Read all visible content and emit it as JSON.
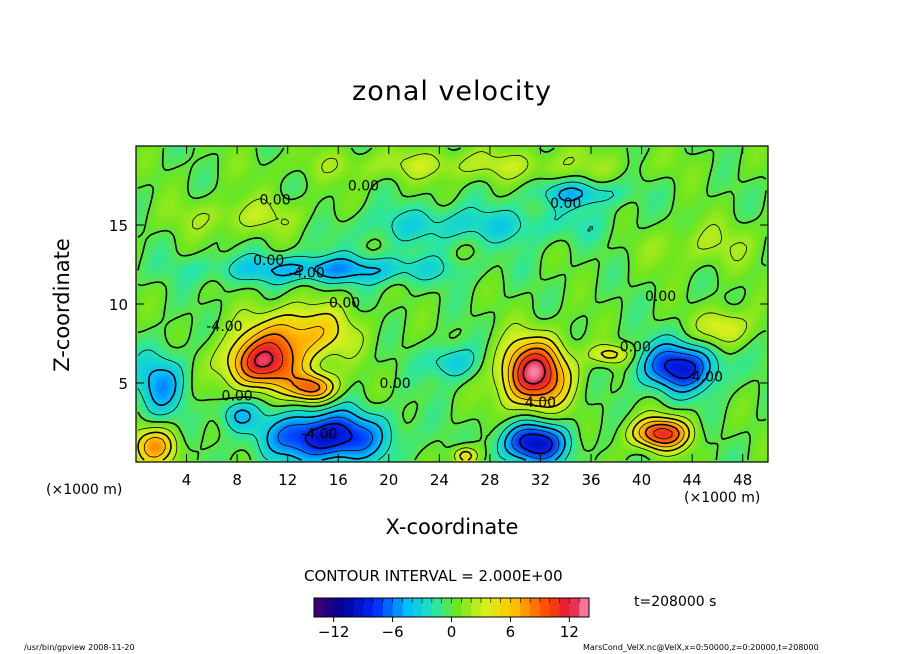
{
  "chart_data": {
    "type": "heatmap",
    "title": "zonal velocity",
    "xlabel": "X-coordinate",
    "ylabel": "Z-coordinate",
    "x_unit_left": "(×1000 m)",
    "x_unit_right": "(×1000 m)",
    "xlim": [
      0,
      50
    ],
    "ylim": [
      0,
      20
    ],
    "xticks": [
      4,
      8,
      12,
      16,
      20,
      24,
      28,
      32,
      36,
      40,
      44,
      48
    ],
    "yticks": [
      5,
      10,
      15
    ],
    "colorbar": {
      "min": -14,
      "max": 14,
      "ticks": [
        -12,
        -6,
        0,
        6,
        12
      ]
    },
    "contour_interval": "CONTOUR INTERVAL = 2.000E+00",
    "time": "t=208000 s",
    "contour_labels": [
      {
        "text": "0.00",
        "x": 18,
        "y": 17.5
      },
      {
        "text": "0.00",
        "x": 11,
        "y": 16.6
      },
      {
        "text": "0.00",
        "x": 34,
        "y": 16.4
      },
      {
        "text": "0.00",
        "x": 10.5,
        "y": 12.8
      },
      {
        "text": "-4.00",
        "x": 13.5,
        "y": 12.0
      },
      {
        "text": "0.00",
        "x": 16.5,
        "y": 10.1
      },
      {
        "text": "0.00",
        "x": 41.5,
        "y": 10.5
      },
      {
        "text": "-4.00",
        "x": 7,
        "y": 8.6
      },
      {
        "text": "0.00",
        "x": 39.5,
        "y": 7.3
      },
      {
        "text": "-4.00",
        "x": 45,
        "y": 5.4
      },
      {
        "text": "0.00",
        "x": 20.5,
        "y": 5.0
      },
      {
        "text": "0.00",
        "x": 8,
        "y": 4.2
      },
      {
        "text": "4.00",
        "x": 32,
        "y": 3.8
      },
      {
        "text": "-4.00",
        "x": 14.5,
        "y": 1.8
      }
    ],
    "features": [
      {
        "x": 10,
        "z": 6.2,
        "rx": 3.0,
        "rz": 1.6,
        "amp": 11
      },
      {
        "x": 14,
        "z": 4.7,
        "rx": 1.8,
        "rz": 0.9,
        "amp": 9
      },
      {
        "x": 13,
        "z": 8.2,
        "rx": 4.0,
        "rz": 1.7,
        "amp": 6.5
      },
      {
        "x": 31.5,
        "z": 5.6,
        "rx": 2.6,
        "rz": 2.1,
        "amp": 13
      },
      {
        "x": 41.5,
        "z": 1.8,
        "rx": 2.2,
        "rz": 1.0,
        "amp": 11
      },
      {
        "x": 37.5,
        "z": 6.8,
        "rx": 1.5,
        "rz": 0.6,
        "amp": 5
      },
      {
        "x": 46.5,
        "z": 8.5,
        "rx": 2.0,
        "rz": 1.2,
        "amp": 4.5
      },
      {
        "x": 1.5,
        "z": 1.0,
        "rx": 1.8,
        "rz": 1.2,
        "amp": 7
      },
      {
        "x": 26,
        "z": 0.4,
        "rx": 1.0,
        "rz": 0.6,
        "amp": 6
      },
      {
        "x": 15,
        "z": 1.6,
        "rx": 4.5,
        "rz": 1.6,
        "amp": -10
      },
      {
        "x": 31.5,
        "z": 1.2,
        "rx": 2.5,
        "rz": 1.3,
        "amp": -10
      },
      {
        "x": 43,
        "z": 6.0,
        "rx": 3.0,
        "rz": 1.5,
        "amp": -9
      },
      {
        "x": 2,
        "z": 5.0,
        "rx": 2.0,
        "rz": 2.0,
        "amp": -5
      },
      {
        "x": 25,
        "z": 6.3,
        "rx": 2.0,
        "rz": 1.1,
        "amp": -4
      },
      {
        "x": 8,
        "z": 3.0,
        "rx": 1.5,
        "rz": 1.0,
        "amp": -4
      },
      {
        "x": 15,
        "z": 12.2,
        "rx": 9.0,
        "rz": 0.9,
        "amp": -5
      },
      {
        "x": 35,
        "z": 17.0,
        "rx": 3.5,
        "rz": 0.8,
        "amp": -4
      },
      {
        "x": 26,
        "z": 15.0,
        "rx": 10.0,
        "rz": 1.2,
        "amp": -3
      },
      {
        "x": 26,
        "z": 18.8,
        "rx": 13.0,
        "rz": 1.0,
        "amp": 2.5
      },
      {
        "x": 9,
        "z": 15.5,
        "rx": 6.0,
        "rz": 1.2,
        "amp": 2.5
      },
      {
        "x": 45,
        "z": 13.8,
        "rx": 5.0,
        "rz": 1.5,
        "amp": 2
      }
    ]
  },
  "footer": {
    "left": "/usr/bin/gpview   2008-11-20",
    "right": "MarsCond_VelX.nc@VelX,x=0:50000,z=0:20000,t=208000"
  }
}
